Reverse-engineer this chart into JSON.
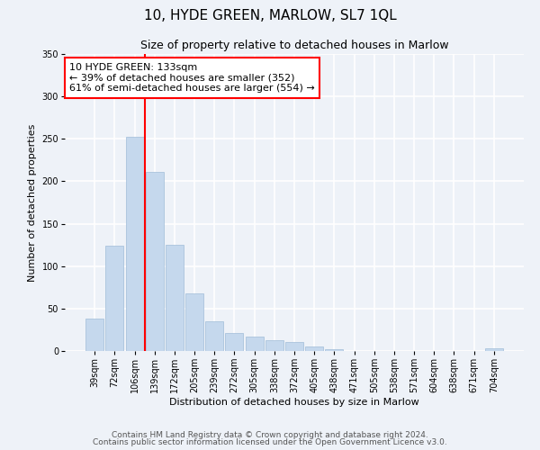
{
  "title": "10, HYDE GREEN, MARLOW, SL7 1QL",
  "subtitle": "Size of property relative to detached houses in Marlow",
  "xlabel": "Distribution of detached houses by size in Marlow",
  "ylabel": "Number of detached properties",
  "bar_labels": [
    "39sqm",
    "72sqm",
    "106sqm",
    "139sqm",
    "172sqm",
    "205sqm",
    "239sqm",
    "272sqm",
    "305sqm",
    "338sqm",
    "372sqm",
    "405sqm",
    "438sqm",
    "471sqm",
    "505sqm",
    "538sqm",
    "571sqm",
    "604sqm",
    "638sqm",
    "671sqm",
    "704sqm"
  ],
  "bar_values": [
    38,
    124,
    252,
    211,
    125,
    68,
    35,
    21,
    17,
    13,
    11,
    5,
    2,
    0,
    0,
    0,
    0,
    0,
    0,
    0,
    3
  ],
  "bar_color": "#c5d8ed",
  "bar_edgecolor": "#a0bcd8",
  "ylim": [
    0,
    350
  ],
  "yticks": [
    0,
    50,
    100,
    150,
    200,
    250,
    300,
    350
  ],
  "vline_index": 3,
  "vline_color": "red",
  "annotation_title": "10 HYDE GREEN: 133sqm",
  "annotation_line1": "← 39% of detached houses are smaller (352)",
  "annotation_line2": "61% of semi-detached houses are larger (554) →",
  "annotation_box_color": "white",
  "annotation_box_edgecolor": "red",
  "footer1": "Contains HM Land Registry data © Crown copyright and database right 2024.",
  "footer2": "Contains public sector information licensed under the Open Government Licence v3.0.",
  "background_color": "#eef2f8",
  "grid_color": "white",
  "title_fontsize": 11,
  "subtitle_fontsize": 9,
  "tick_fontsize": 7,
  "footer_fontsize": 6.5,
  "ylabel_fontsize": 8,
  "xlabel_fontsize": 8
}
